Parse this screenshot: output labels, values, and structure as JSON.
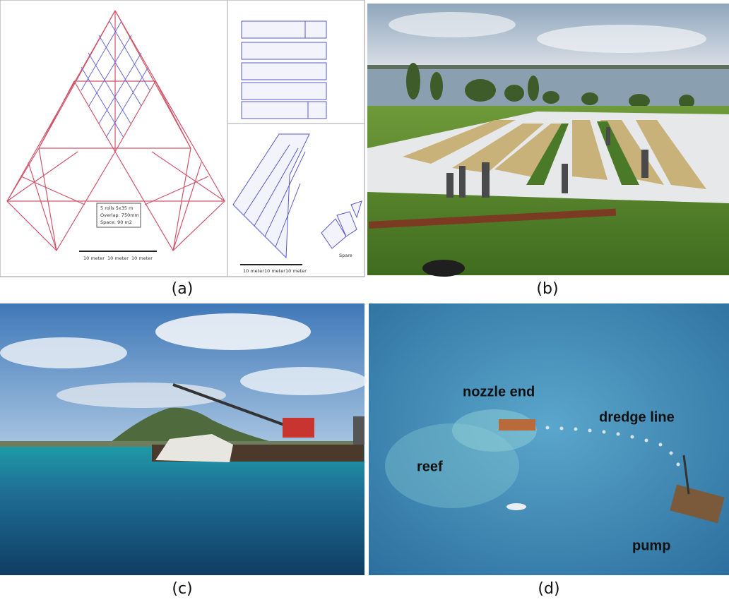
{
  "panels": [
    {
      "label": "(a)",
      "notes": [
        "5 rolls 5x35 m",
        "Overlap: 750mm",
        "Space: 90 m2"
      ],
      "scale": [
        "10 meter",
        "10 meter",
        "10 meter"
      ],
      "scale_right": [
        "10 meter",
        "10 meter",
        "10 meter"
      ],
      "spare": "Spare"
    },
    {
      "label": "(b)"
    },
    {
      "label": "(c)"
    },
    {
      "label": "(d)",
      "annotations": [
        "nozzle end",
        "dredge line",
        "reef",
        "pump"
      ]
    }
  ]
}
